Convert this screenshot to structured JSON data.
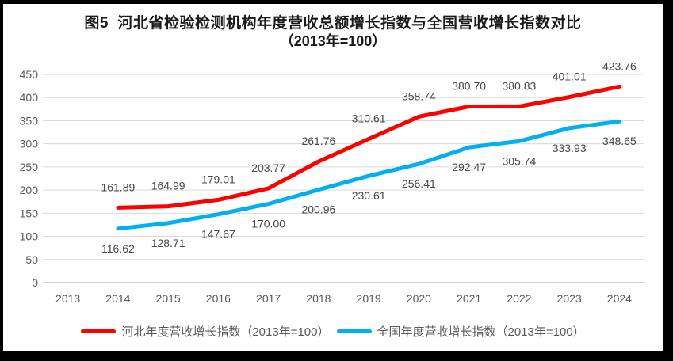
{
  "title": {
    "line1": "图5  河北省检验检测机构年度营收总额增长指数与全国营收增长指数对比",
    "line2": "（2013年=100）"
  },
  "chart_data": {
    "type": "line",
    "title": "图5 河北省检验检测机构年度营收总额增长指数与全国营收增长指数对比（2013年=100）",
    "categories": [
      "2013",
      "2014",
      "2015",
      "2016",
      "2017",
      "2018",
      "2019",
      "2020",
      "2021",
      "2022",
      "2023",
      "2024"
    ],
    "ylim": [
      0,
      450
    ],
    "ytick_step": 50,
    "grid": "horizontal-gridlines-on",
    "legend_position": "bottom",
    "series": [
      {
        "key": "hebei",
        "name": "河北年度营收增长指数（2013年=100）",
        "color": "#FF0000",
        "label_position": "above",
        "start_category": "2014",
        "values": [
          161.89,
          164.99,
          179.01,
          203.77,
          261.76,
          310.61,
          358.74,
          380.7,
          380.83,
          401.01,
          423.76
        ],
        "labels": [
          "161.89",
          "164.99",
          "179.01",
          "203.77",
          "261.76",
          "310.61",
          "358.74",
          "380.70",
          "380.83",
          "401.01",
          "423.76"
        ]
      },
      {
        "key": "national",
        "name": "全国年度营收增长指数（2013年=100）",
        "color": "#00B0F0",
        "label_position": "below",
        "start_category": "2014",
        "values": [
          116.62,
          128.71,
          147.67,
          170.0,
          200.96,
          230.61,
          256.41,
          292.47,
          305.74,
          333.93,
          348.65
        ],
        "labels": [
          "116.62",
          "128.71",
          "147.67",
          "170.00",
          "200.96",
          "230.61",
          "256.41",
          "292.47",
          "305.74",
          "333.93",
          "348.65"
        ]
      }
    ],
    "colors": {
      "axis_text": "#595959",
      "data_label_text": "#464646",
      "gridline": "#D9D9D9",
      "axis_line": "#A6A6A6",
      "panel_background": "#FFFFFF",
      "outer_background": "#000000"
    }
  }
}
